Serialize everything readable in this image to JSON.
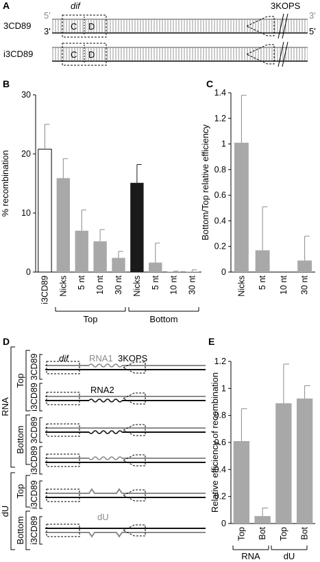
{
  "panels": {
    "A": {
      "letter": "A",
      "dif_label": "dif",
      "kops_label": "3KOPS",
      "c_label": "C",
      "d_label": "D",
      "p5_top": "5'",
      "p3_top": "3'",
      "p3_bottom": "3'",
      "p5_bottom": "5'",
      "constructs": [
        "3CD89",
        "i3CD89"
      ]
    },
    "B": {
      "letter": "B",
      "group_top": "Top",
      "group_bottom": "Bottom"
    },
    "C": {
      "letter": "C"
    },
    "D": {
      "letter": "D",
      "dif_label": "dif",
      "rna1_label": "RNA1",
      "rna2_label": "RNA2",
      "kops_label": "3KOPS",
      "du_label": "dU",
      "group_rna": "RNA",
      "group_du": "dU",
      "sub_top": "Top",
      "sub_bottom": "Bottom",
      "constructs": [
        "3CD89",
        "i3CD89"
      ]
    },
    "E": {
      "letter": "E",
      "group_rna": "RNA",
      "group_du": "dU"
    }
  },
  "chart_data": [
    {
      "panel": "B",
      "type": "bar",
      "ylabel": "% recombination",
      "ylim": [
        0,
        30
      ],
      "yticks": [
        0,
        10,
        20,
        30
      ],
      "categories": [
        "i3CD89",
        "Nicks",
        "5 nt",
        "10 nt",
        "30 nt",
        "Nicks",
        "5 nt",
        "10 nt",
        "30 nt"
      ],
      "values": [
        20.8,
        15.9,
        7.0,
        5.2,
        2.4,
        15.1,
        1.6,
        0.05,
        0.08
      ],
      "errors": [
        4.2,
        3.3,
        3.5,
        2.0,
        1.1,
        3.1,
        3.3,
        0.1,
        0.3
      ],
      "colors": [
        "#ffffff",
        "#a8a8a8",
        "#a8a8a8",
        "#a8a8a8",
        "#a8a8a8",
        "#1a1a1a",
        "#a8a8a8",
        "#a8a8a8",
        "#a8a8a8"
      ],
      "groups": [
        {
          "label": "Top",
          "from": 1,
          "to": 4
        },
        {
          "label": "Bottom",
          "from": 5,
          "to": 8
        }
      ]
    },
    {
      "panel": "C",
      "type": "bar",
      "ylabel": "Bottom/Top relative efficiency",
      "ylim": [
        0,
        1.4
      ],
      "yticks": [
        0,
        0.2,
        0.4,
        0.6,
        0.8,
        1,
        1.2,
        1.4
      ],
      "categories": [
        "Nicks",
        "5 nt",
        "10 nt",
        "30 nt"
      ],
      "values": [
        1.01,
        0.17,
        0,
        0.09
      ],
      "errors": [
        0.37,
        0.34,
        0,
        0.19
      ],
      "colors": [
        "#a8a8a8",
        "#a8a8a8",
        "#a8a8a8",
        "#a8a8a8"
      ]
    },
    {
      "panel": "E",
      "type": "bar",
      "ylabel": "Relative efficiency of recombination",
      "ylim": [
        0,
        1.2
      ],
      "yticks": [
        0,
        0.2,
        0.4,
        0.6,
        0.8,
        1,
        1.2
      ],
      "categories": [
        "Top",
        "Bot",
        "Top",
        "Bot"
      ],
      "values": [
        0.61,
        0.055,
        0.89,
        0.925
      ],
      "errors": [
        0.24,
        0.06,
        0.29,
        0.095
      ],
      "colors": [
        "#a8a8a8",
        "#a8a8a8",
        "#a8a8a8",
        "#a8a8a8"
      ],
      "groups": [
        {
          "label": "RNA",
          "from": 0,
          "to": 1
        },
        {
          "label": "dU",
          "from": 2,
          "to": 3
        }
      ]
    }
  ]
}
